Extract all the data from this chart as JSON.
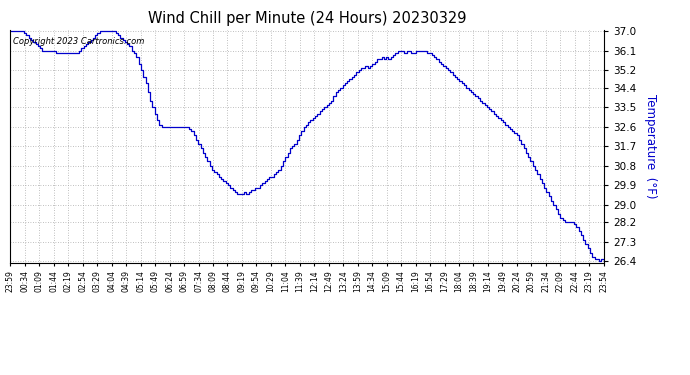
{
  "title": "Wind Chill per Minute (24 Hours) 20230329",
  "ylabel": "Temperature  (°F)",
  "copyright_text": "Copyright 2023 Cartronics.com",
  "line_color": "#0000cc",
  "ylabel_color": "#0000cc",
  "background_color": "#ffffff",
  "grid_color": "#aaaaaa",
  "ylim_min": 26.4,
  "ylim_max": 37.0,
  "yticks": [
    37.0,
    36.1,
    35.2,
    34.4,
    33.5,
    32.6,
    31.7,
    30.8,
    29.9,
    29.0,
    28.2,
    27.3,
    26.4
  ],
  "xtick_labels": [
    "23:59",
    "00:34",
    "01:09",
    "01:44",
    "02:19",
    "02:54",
    "03:29",
    "04:04",
    "04:39",
    "05:14",
    "05:49",
    "06:24",
    "06:59",
    "07:34",
    "08:09",
    "08:44",
    "09:19",
    "09:54",
    "10:29",
    "11:04",
    "11:39",
    "12:14",
    "12:49",
    "13:24",
    "13:59",
    "14:34",
    "15:09",
    "15:44",
    "16:19",
    "16:54",
    "17:29",
    "18:04",
    "18:39",
    "19:14",
    "19:49",
    "20:24",
    "20:59",
    "21:34",
    "22:09",
    "22:44",
    "23:19",
    "23:54"
  ],
  "data_y": [
    37.0,
    37.0,
    37.0,
    37.0,
    37.0,
    37.0,
    36.9,
    36.8,
    36.7,
    36.6,
    36.5,
    36.4,
    36.3,
    36.2,
    36.1,
    36.1,
    36.1,
    36.1,
    36.1,
    36.1,
    36.0,
    36.0,
    36.0,
    36.0,
    36.0,
    36.0,
    36.0,
    36.0,
    36.0,
    36.0,
    36.1,
    36.2,
    36.3,
    36.4,
    36.5,
    36.6,
    36.7,
    36.8,
    36.9,
    37.0,
    37.0,
    37.0,
    37.0,
    37.0,
    37.0,
    37.0,
    36.9,
    36.8,
    36.7,
    36.6,
    36.5,
    36.4,
    36.3,
    36.1,
    36.0,
    35.8,
    35.5,
    35.2,
    34.9,
    34.6,
    34.2,
    33.8,
    33.5,
    33.2,
    32.9,
    32.7,
    32.6,
    32.6,
    32.6,
    32.6,
    32.6,
    32.6,
    32.6,
    32.6,
    32.6,
    32.6,
    32.6,
    32.6,
    32.5,
    32.4,
    32.2,
    32.0,
    31.8,
    31.6,
    31.4,
    31.2,
    31.0,
    30.8,
    30.6,
    30.5,
    30.4,
    30.3,
    30.2,
    30.1,
    30.0,
    29.9,
    29.8,
    29.7,
    29.6,
    29.5,
    29.5,
    29.5,
    29.6,
    29.5,
    29.6,
    29.7,
    29.7,
    29.8,
    29.8,
    29.9,
    30.0,
    30.1,
    30.2,
    30.3,
    30.3,
    30.4,
    30.5,
    30.6,
    30.8,
    31.0,
    31.2,
    31.4,
    31.6,
    31.7,
    31.8,
    32.0,
    32.2,
    32.4,
    32.6,
    32.7,
    32.8,
    32.9,
    33.0,
    33.1,
    33.2,
    33.3,
    33.4,
    33.5,
    33.6,
    33.7,
    33.8,
    34.0,
    34.2,
    34.3,
    34.4,
    34.5,
    34.6,
    34.7,
    34.8,
    34.9,
    35.0,
    35.1,
    35.2,
    35.3,
    35.3,
    35.4,
    35.3,
    35.4,
    35.5,
    35.6,
    35.7,
    35.7,
    35.8,
    35.7,
    35.8,
    35.7,
    35.8,
    35.9,
    36.0,
    36.1,
    36.1,
    36.1,
    36.0,
    36.1,
    36.1,
    36.0,
    36.0,
    36.1,
    36.1,
    36.1,
    36.1,
    36.1,
    36.0,
    36.0,
    35.9,
    35.8,
    35.7,
    35.6,
    35.5,
    35.4,
    35.3,
    35.2,
    35.1,
    35.0,
    34.9,
    34.8,
    34.7,
    34.6,
    34.5,
    34.4,
    34.3,
    34.2,
    34.1,
    34.0,
    33.9,
    33.8,
    33.7,
    33.6,
    33.5,
    33.4,
    33.3,
    33.2,
    33.1,
    33.0,
    32.9,
    32.8,
    32.7,
    32.6,
    32.5,
    32.4,
    32.3,
    32.2,
    32.0,
    31.8,
    31.6,
    31.4,
    31.2,
    31.0,
    30.8,
    30.6,
    30.4,
    30.2,
    30.0,
    29.8,
    29.6,
    29.4,
    29.2,
    29.0,
    28.8,
    28.6,
    28.4,
    28.3,
    28.2,
    28.2,
    28.2,
    28.2,
    28.1,
    28.0,
    27.8,
    27.6,
    27.4,
    27.2,
    27.0,
    26.8,
    26.6,
    26.5,
    26.5,
    26.4,
    26.5,
    26.4
  ]
}
